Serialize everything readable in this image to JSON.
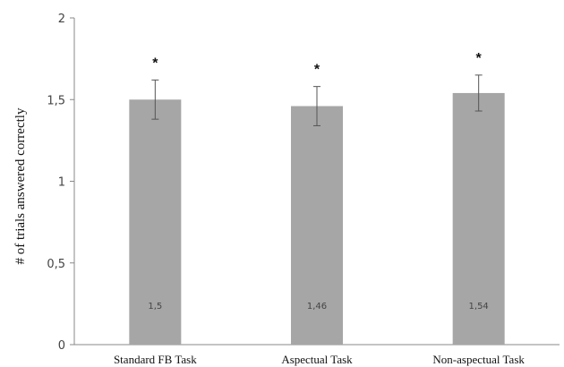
{
  "chart_data": {
    "type": "bar",
    "title": "",
    "xlabel": "",
    "ylabel": "# of trials answered correctly",
    "ylim": [
      0,
      2
    ],
    "yticks": [
      0,
      0.5,
      1,
      1.5,
      2
    ],
    "ytick_labels": [
      "0",
      "0,5",
      "1",
      "1,5",
      "2"
    ],
    "categories": [
      "Standard FB Task",
      "Aspectual Task",
      "Non-aspectual Task"
    ],
    "values": [
      1.5,
      1.46,
      1.54
    ],
    "value_labels": [
      "1,5",
      "1,46",
      "1,54"
    ],
    "error_bars": [
      {
        "low": 1.38,
        "high": 1.62
      },
      {
        "low": 1.34,
        "high": 1.58
      },
      {
        "low": 1.43,
        "high": 1.65
      }
    ],
    "significance_marks": [
      "*",
      "*",
      "*"
    ],
    "grid": false,
    "legend": "none",
    "colors": {
      "bar": "#a6a6a6",
      "axis": "#888888",
      "error_bar": "#555555"
    }
  }
}
